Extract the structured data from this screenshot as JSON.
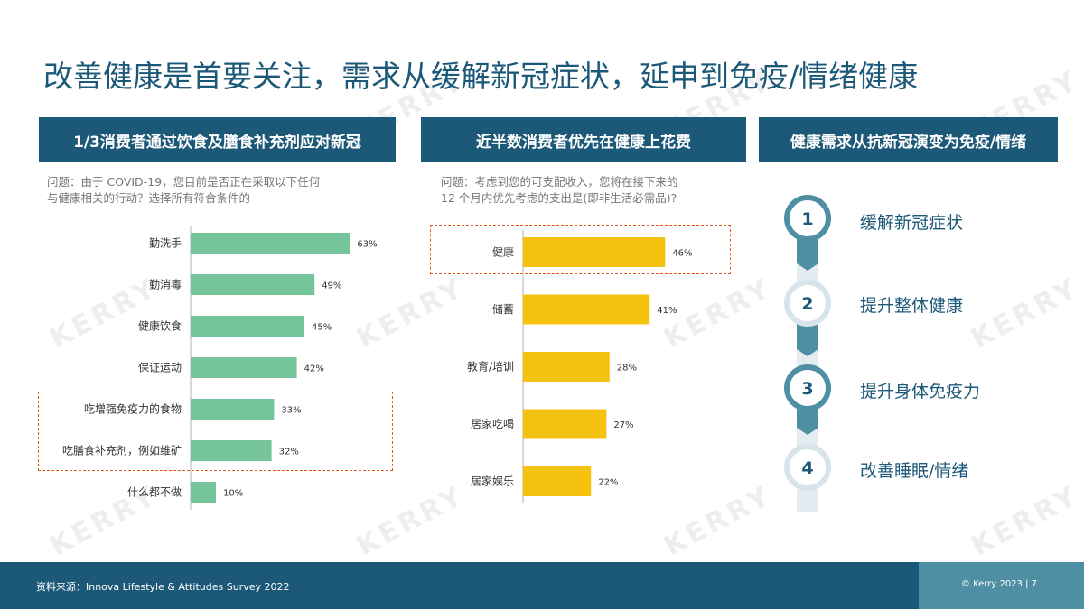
{
  "title": "改善健康是首要关注，需求从缓解新冠症状，延申到免疫/情绪健康",
  "watermark_text": "KERRY",
  "colors": {
    "brand_dark": "#1c5878",
    "green_bar": "#76c49a",
    "yellow_bar": "#f5c20f",
    "highlight": "#e25a1c",
    "timeline": "#4e8fa3"
  },
  "panels": {
    "left": {
      "header": "1/3消费者通过饮食及膳食补充剂应对新冠",
      "question_line1": "问题：由于 COVID-19，您目前是否正在采取以下任何",
      "question_line2": "与健康相关的行动？选择所有符合条件的"
    },
    "middle": {
      "header": "近半数消费者优先在健康上花费",
      "question_line1": "问题：考虑到您的可支配收入，您将在接下来的",
      "question_line2": "12 个月内优先考虑的支出是(即非生活必需品)?"
    },
    "right": {
      "header": "健康需求从抗新冠演变为免疫/情绪",
      "steps": [
        {
          "number": "1",
          "label": "缓解新冠症状"
        },
        {
          "number": "2",
          "label": "提升整体健康"
        },
        {
          "number": "3",
          "label": "提升身体免疫力"
        },
        {
          "number": "4",
          "label": "改善睡眠/情绪"
        }
      ]
    }
  },
  "chart_data": [
    {
      "type": "bar",
      "orientation": "horizontal",
      "categories": [
        "勤洗手",
        "勤消毒",
        "健康饮食",
        "保证运动",
        "吃增强免疫力的食物",
        "吃膳食补充剂，例如维矿",
        "什么都不做"
      ],
      "values": [
        63,
        49,
        45,
        42,
        33,
        32,
        10
      ],
      "value_labels": [
        "63%",
        "49%",
        "45%",
        "42%",
        "33%",
        "32%",
        "10%"
      ],
      "unit": "%",
      "highlighted": [
        "吃增强免疫力的食物",
        "吃膳食补充剂，例如维矿"
      ],
      "color": "#76c49a"
    },
    {
      "type": "bar",
      "orientation": "horizontal",
      "categories": [
        "健康",
        "储蓄",
        "教育/培训",
        "居家吃喝",
        "居家娱乐"
      ],
      "values": [
        46,
        41,
        28,
        27,
        22
      ],
      "value_labels": [
        "46%",
        "41%",
        "28%",
        "27%",
        "22%"
      ],
      "unit": "%",
      "highlighted": [
        "健康"
      ],
      "color": "#f5c20f"
    }
  ],
  "footer": {
    "source": "资料来源：Innova Lifestyle & Attitudes Survey 2022",
    "copyright": "© Kerry 2023 | 7"
  }
}
